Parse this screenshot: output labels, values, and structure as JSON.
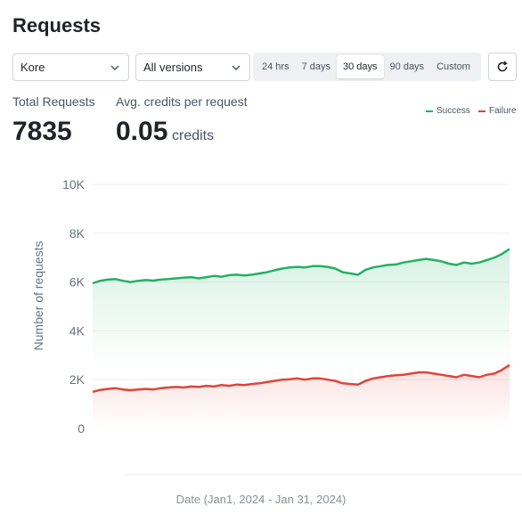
{
  "header": {
    "title": "Requests"
  },
  "filters": {
    "model_select": "Kore",
    "version_select": "All versions",
    "ranges": [
      "24 hrs",
      "7 days",
      "30 days",
      "90 days",
      "Custom"
    ],
    "active_range": "30 days"
  },
  "stats": {
    "total_label": "Total Requests",
    "total_value": "7835",
    "avg_label": "Avg. credits per request",
    "avg_value": "0.05",
    "avg_unit": "credits"
  },
  "legend": {
    "success": "Success",
    "failure": "Failure"
  },
  "colors": {
    "success": "#22b163",
    "failure": "#e0443a",
    "accent": "#1f2328"
  },
  "icons": {
    "caret": "chevron-down-icon",
    "refresh": "refresh-icon"
  },
  "chart_data": {
    "type": "area",
    "xlabel": "Date (Jan1, 2024 - Jan 31, 2024)",
    "ylabel": "Number of requests",
    "ylim": [
      0,
      10000
    ],
    "yticks": [
      0,
      2000,
      4000,
      6000,
      8000,
      10000
    ],
    "ytick_labels": [
      "0",
      "2K",
      "4K",
      "6K",
      "8K",
      "10K"
    ],
    "grid": true,
    "legend_position": "top-right",
    "x_count": 56,
    "series": [
      {
        "name": "Success",
        "color": "#22b163",
        "values": [
          5950,
          6050,
          6100,
          6120,
          6050,
          6000,
          6050,
          6080,
          6060,
          6100,
          6120,
          6150,
          6180,
          6200,
          6150,
          6200,
          6250,
          6220,
          6280,
          6300,
          6270,
          6300,
          6350,
          6400,
          6480,
          6550,
          6600,
          6620,
          6600,
          6650,
          6650,
          6620,
          6550,
          6400,
          6350,
          6300,
          6500,
          6600,
          6650,
          6700,
          6720,
          6800,
          6850,
          6900,
          6950,
          6900,
          6850,
          6750,
          6700,
          6800,
          6750,
          6800,
          6900,
          7000,
          7150,
          7350
        ]
      },
      {
        "name": "Failure",
        "color": "#e0443a",
        "values": [
          1500,
          1580,
          1620,
          1650,
          1600,
          1570,
          1600,
          1620,
          1600,
          1650,
          1680,
          1700,
          1680,
          1720,
          1700,
          1750,
          1720,
          1780,
          1750,
          1800,
          1780,
          1820,
          1850,
          1900,
          1950,
          2000,
          2020,
          2050,
          2000,
          2050,
          2050,
          2000,
          1950,
          1850,
          1820,
          1800,
          1950,
          2050,
          2100,
          2150,
          2180,
          2200,
          2250,
          2300,
          2300,
          2250,
          2200,
          2150,
          2100,
          2200,
          2150,
          2100,
          2200,
          2250,
          2400,
          2600
        ]
      }
    ]
  }
}
